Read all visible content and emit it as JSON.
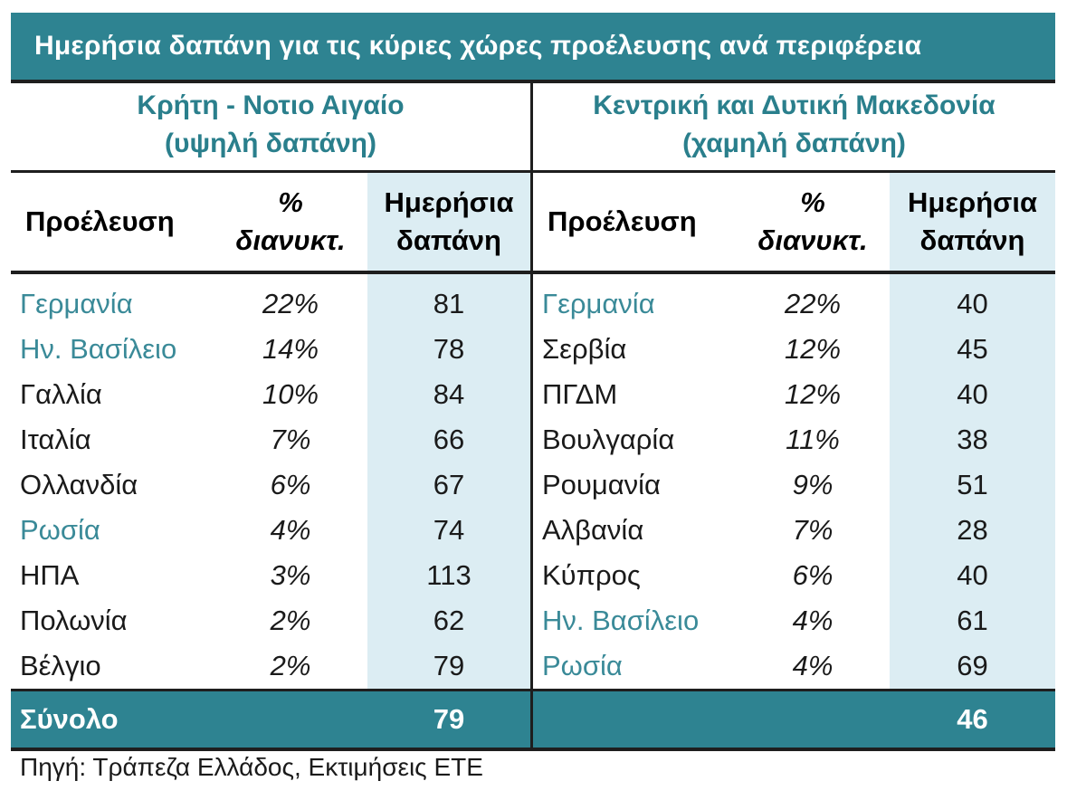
{
  "title": "Ημερήσια δαπάνη για τις κύριες χώρες προέλευσης ανά περιφέρεια",
  "regions": [
    {
      "name_line1": "Κρήτη - Νοτιο Αιγαίο",
      "name_line2": "(υψηλή δαπάνη)",
      "headers": {
        "origin": "Προέλευση",
        "pct_line1": "%",
        "pct_line2": "διανυκτ.",
        "spend_line1": "Ημερήσια",
        "spend_line2": "δαπάνη"
      },
      "rows": [
        {
          "origin": "Γερμανία",
          "pct": "22%",
          "spend": "81",
          "highlight": true
        },
        {
          "origin": "Ην. Βασίλειο",
          "pct": "14%",
          "spend": "78",
          "highlight": true
        },
        {
          "origin": "Γαλλία",
          "pct": "10%",
          "spend": "84",
          "highlight": false
        },
        {
          "origin": "Ιταλία",
          "pct": "7%",
          "spend": "66",
          "highlight": false
        },
        {
          "origin": "Ολλανδία",
          "pct": "6%",
          "spend": "67",
          "highlight": false
        },
        {
          "origin": "Ρωσία",
          "pct": "4%",
          "spend": "74",
          "highlight": true
        },
        {
          "origin": "ΗΠΑ",
          "pct": "3%",
          "spend": "113",
          "highlight": false
        },
        {
          "origin": "Πολωνία",
          "pct": "2%",
          "spend": "62",
          "highlight": false
        },
        {
          "origin": "Βέλγιο",
          "pct": "2%",
          "spend": "79",
          "highlight": false
        }
      ],
      "total_label": "Σύνολο",
      "total_value": "79"
    },
    {
      "name_line1": "Κεντρική και Δυτική Μακεδονία",
      "name_line2": "(χαμηλή δαπάνη)",
      "headers": {
        "origin": "Προέλευση",
        "pct_line1": "%",
        "pct_line2": "διανυκτ.",
        "spend_line1": "Ημερήσια",
        "spend_line2": "δαπάνη"
      },
      "rows": [
        {
          "origin": "Γερμανία",
          "pct": "22%",
          "spend": "40",
          "highlight": true
        },
        {
          "origin": "Σερβία",
          "pct": "12%",
          "spend": "45",
          "highlight": false
        },
        {
          "origin": "ΠΓΔΜ",
          "pct": "12%",
          "spend": "40",
          "highlight": false
        },
        {
          "origin": "Βουλγαρία",
          "pct": "11%",
          "spend": "38",
          "highlight": false
        },
        {
          "origin": "Ρουμανία",
          "pct": "9%",
          "spend": "51",
          "highlight": false
        },
        {
          "origin": "Αλβανία",
          "pct": "7%",
          "spend": "28",
          "highlight": false
        },
        {
          "origin": "Κύπρος",
          "pct": "6%",
          "spend": "40",
          "highlight": false
        },
        {
          "origin": "Ην. Βασίλειο",
          "pct": "4%",
          "spend": "61",
          "highlight": true
        },
        {
          "origin": "Ρωσία",
          "pct": "4%",
          "spend": "69",
          "highlight": true
        }
      ],
      "total_label": "",
      "total_value": "46"
    }
  ],
  "source": "Πηγή: Τράπεζα Ελλάδος, Εκτιμήσεις ΕΤΕ",
  "colors": {
    "header_bg": "#2e8391",
    "highlight_text": "#3a8a98",
    "spend_col_bg": "#dcedf3"
  }
}
